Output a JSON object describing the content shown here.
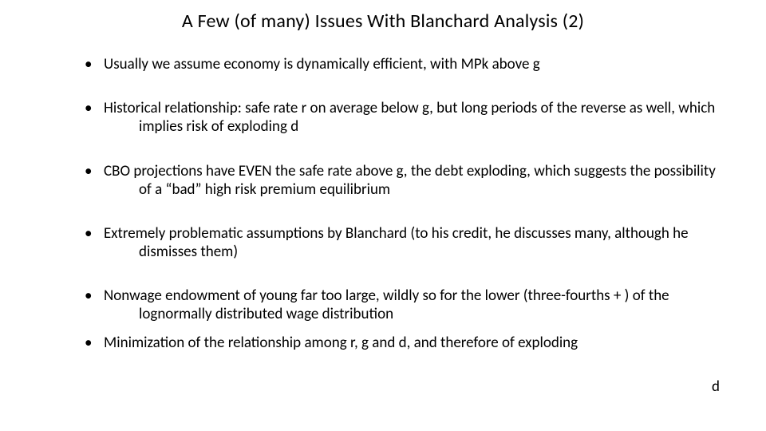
{
  "title": "A Few (of many) Issues With Blanchard Analysis (2)",
  "bullets": [
    "Usually we assume economy is dynamically efficient, with MPk above g",
    "Historical relationship: safe rate r on average below g, but long periods of the reverse as well, which implies risk of exploding d",
    "CBO projections have EVEN the safe rate above g, the debt exploding, which suggests the possibility of a “bad” high risk premium equilibrium",
    "Extremely problematic assumptions by Blanchard (to his credit, he discusses many, although he dismisses them)",
    "Nonwage endowment of young far too large, wildly so for the lower (three-fourths + ) of the lognormally distributed wage distribution",
    "Minimization of the relationship among r, g and d, and therefore of exploding"
  ],
  "floating_text": "d",
  "colors": {
    "background": "#ffffff",
    "text": "#000000"
  },
  "font_family": "Calibri",
  "title_fontsize": 24,
  "body_fontsize": 19
}
